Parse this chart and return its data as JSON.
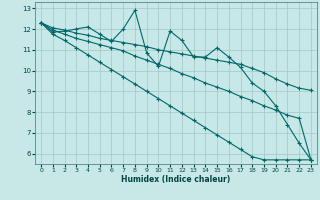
{
  "xlabel": "Humidex (Indice chaleur)",
  "background_color": "#c8e8e8",
  "grid_color": "#a0c8c8",
  "line_color": "#006868",
  "x_values": [
    0,
    1,
    2,
    3,
    4,
    5,
    6,
    7,
    8,
    9,
    10,
    11,
    12,
    13,
    14,
    15,
    16,
    17,
    18,
    19,
    20,
    21,
    22,
    23
  ],
  "series1": [
    12.3,
    11.85,
    11.9,
    12.0,
    12.1,
    11.75,
    11.4,
    12.0,
    12.9,
    10.85,
    10.2,
    11.9,
    11.45,
    10.65,
    10.65,
    11.1,
    10.65,
    10.15,
    9.4,
    9.0,
    8.3,
    7.4,
    6.5,
    5.7
  ],
  "series2": [
    12.3,
    12.05,
    11.95,
    11.8,
    11.7,
    11.55,
    11.45,
    11.35,
    11.25,
    11.15,
    11.0,
    10.9,
    10.8,
    10.7,
    10.6,
    10.5,
    10.4,
    10.3,
    10.1,
    9.9,
    9.6,
    9.35,
    9.15,
    9.05
  ],
  "series3": [
    12.3,
    11.95,
    11.75,
    11.55,
    11.4,
    11.25,
    11.1,
    10.95,
    10.7,
    10.5,
    10.3,
    10.1,
    9.85,
    9.65,
    9.4,
    9.2,
    9.0,
    8.75,
    8.55,
    8.3,
    8.1,
    7.85,
    7.7,
    5.7
  ],
  "series4": [
    12.3,
    11.75,
    11.45,
    11.1,
    10.75,
    10.4,
    10.05,
    9.7,
    9.35,
    9.0,
    8.65,
    8.3,
    7.95,
    7.6,
    7.25,
    6.9,
    6.55,
    6.2,
    5.85,
    5.7,
    5.7,
    5.7,
    5.7,
    5.7
  ],
  "ylim": [
    5.5,
    13.3
  ],
  "yticks": [
    6,
    7,
    8,
    9,
    10,
    11,
    12,
    13
  ],
  "xticks": [
    0,
    1,
    2,
    3,
    4,
    5,
    6,
    7,
    8,
    9,
    10,
    11,
    12,
    13,
    14,
    15,
    16,
    17,
    18,
    19,
    20,
    21,
    22,
    23
  ]
}
